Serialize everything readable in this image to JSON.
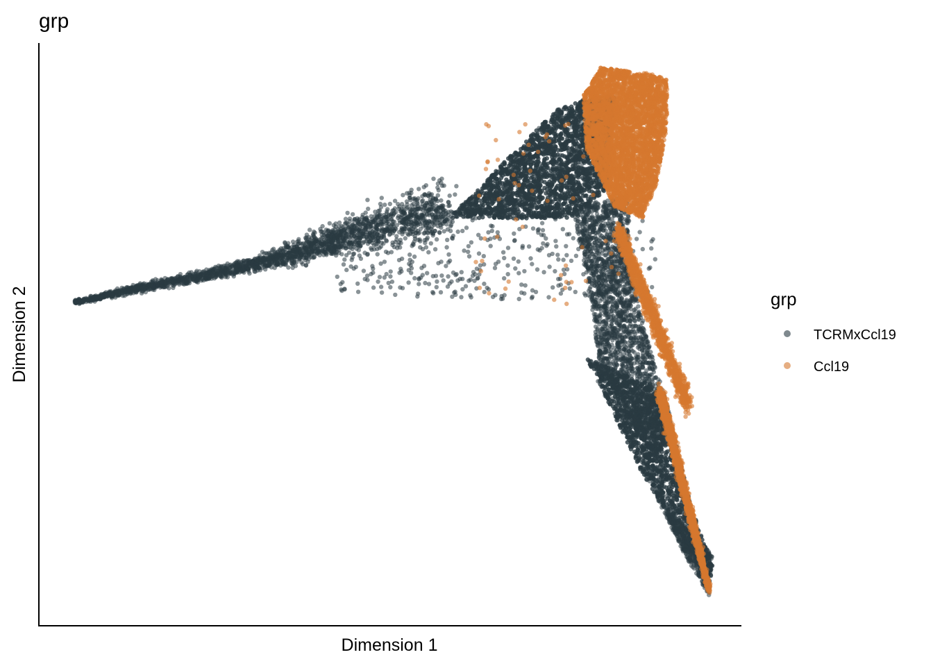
{
  "chart_data": {
    "type": "scatter",
    "title": "grp",
    "xlabel": "Dimension 1",
    "ylabel": "Dimension 2",
    "xlim": [
      0,
      100
    ],
    "ylim": [
      0,
      100
    ],
    "ticks_shown": false,
    "grid": false,
    "legend": {
      "title": "grp",
      "placement": "right",
      "entries": [
        {
          "name": "TCRMxCcl19",
          "color": "#2a3b42"
        },
        {
          "name": "Ccl19",
          "color": "#d6782e"
        }
      ]
    },
    "series": [
      {
        "name": "TCRMxCcl19",
        "color": "#2a3b42",
        "opacity": 0.55,
        "regions": [
          {
            "shape": "band",
            "x": [
              5,
              30
            ],
            "y": [
              55.6,
              61.9
            ],
            "width": [
              0.6,
              1.8
            ],
            "n": 900
          },
          {
            "shape": "band",
            "x": [
              30,
              58
            ],
            "y": [
              61.9,
              72.0
            ],
            "width": [
              1.8,
              7.5
            ],
            "n": 1400
          },
          {
            "shape": "poly",
            "pts": [
              [
                55,
                66
              ],
              [
                74,
                89
              ],
              [
                79,
                91
              ],
              [
                82,
                91
              ],
              [
                81,
                75
              ],
              [
                76,
                70
              ],
              [
                58,
                70
              ]
            ],
            "n": 4200
          },
          {
            "shape": "poly",
            "pts": [
              [
                76,
                72
              ],
              [
                84,
                74
              ],
              [
                84,
                62
              ],
              [
                87,
                48
              ],
              [
                90,
                36
              ],
              [
                88,
                28
              ],
              [
                80,
                44
              ],
              [
                78,
                60
              ]
            ],
            "n": 2200
          },
          {
            "shape": "poly",
            "pts": [
              [
                78,
                46
              ],
              [
                89,
                40
              ],
              [
                93,
                20
              ],
              [
                96,
                10
              ],
              [
                95,
                8
              ],
              [
                86,
                26
              ]
            ],
            "n": 2600
          },
          {
            "shape": "sparse",
            "x": [
              42,
              88
            ],
            "y": [
              56,
              70
            ],
            "n": 380
          },
          {
            "shape": "poly",
            "pts": [
              [
                88,
                22
              ],
              [
                96,
                12
              ],
              [
                95.5,
                5
              ],
              [
                92,
                12
              ]
            ],
            "n": 500
          }
        ]
      },
      {
        "name": "Ccl19",
        "color": "#d6782e",
        "opacity": 0.6,
        "regions": [
          {
            "shape": "poly",
            "pts": [
              [
                77.5,
                91
              ],
              [
                80,
                96
              ],
              [
                87,
                95
              ],
              [
                89.5,
                94
              ],
              [
                89.5,
                86
              ],
              [
                88,
                76
              ],
              [
                86,
                70
              ],
              [
                82,
                72
              ],
              [
                78,
                82
              ]
            ],
            "n": 5200
          },
          {
            "shape": "band",
            "x": [
              82.5,
              92.5
            ],
            "y": [
              68,
              38
            ],
            "width": [
              2.5,
              3.0
            ],
            "n": 1500
          },
          {
            "shape": "band",
            "x": [
              88.5,
              95.5
            ],
            "y": [
              40,
              6
            ],
            "width": [
              2.5,
              1.2
            ],
            "n": 1700
          },
          {
            "shape": "sparse",
            "x": [
              62,
              83
            ],
            "y": [
              55,
              88
            ],
            "n": 60
          }
        ]
      }
    ],
    "notes": []
  }
}
